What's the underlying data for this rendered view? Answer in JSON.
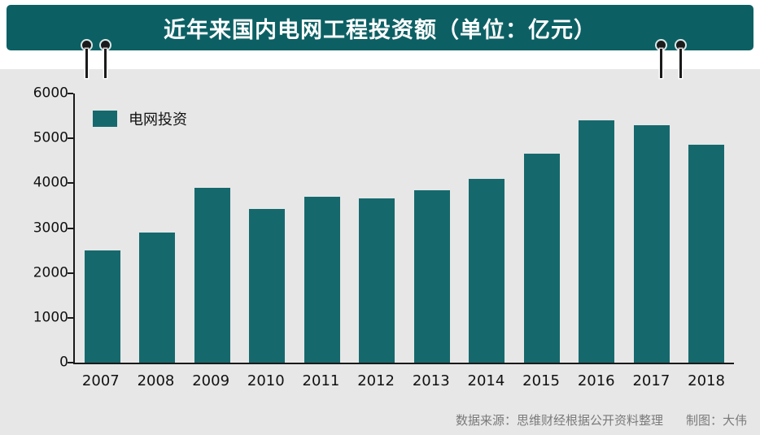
{
  "header": {
    "title": "近年来国内电网工程投资额（单位：亿元）"
  },
  "legend": {
    "label": "电网投资"
  },
  "footer": {
    "source": "数据来源：思维财经根据公开资料整理",
    "credit": "制图：大伟"
  },
  "colors": {
    "banner": "#0c6064",
    "bar": "#15696d",
    "panel": "#e7e7e7",
    "axis": "#1a1a1a",
    "footer_text": "#7a7a7a"
  },
  "chart_data": {
    "type": "bar",
    "title": "近年来国内电网工程投资额（单位：亿元）",
    "categories": [
      "2007",
      "2008",
      "2009",
      "2010",
      "2011",
      "2012",
      "2013",
      "2014",
      "2015",
      "2016",
      "2017",
      "2018"
    ],
    "values": [
      2500,
      2900,
      3900,
      3430,
      3700,
      3660,
      3850,
      4100,
      4650,
      5400,
      5300,
      4850
    ],
    "xlabel": "",
    "ylabel": "",
    "ylim": [
      0,
      6000
    ],
    "ytick_step": 1000,
    "grid": false,
    "legend": [
      "电网投资"
    ],
    "legend_position": "top-left"
  }
}
